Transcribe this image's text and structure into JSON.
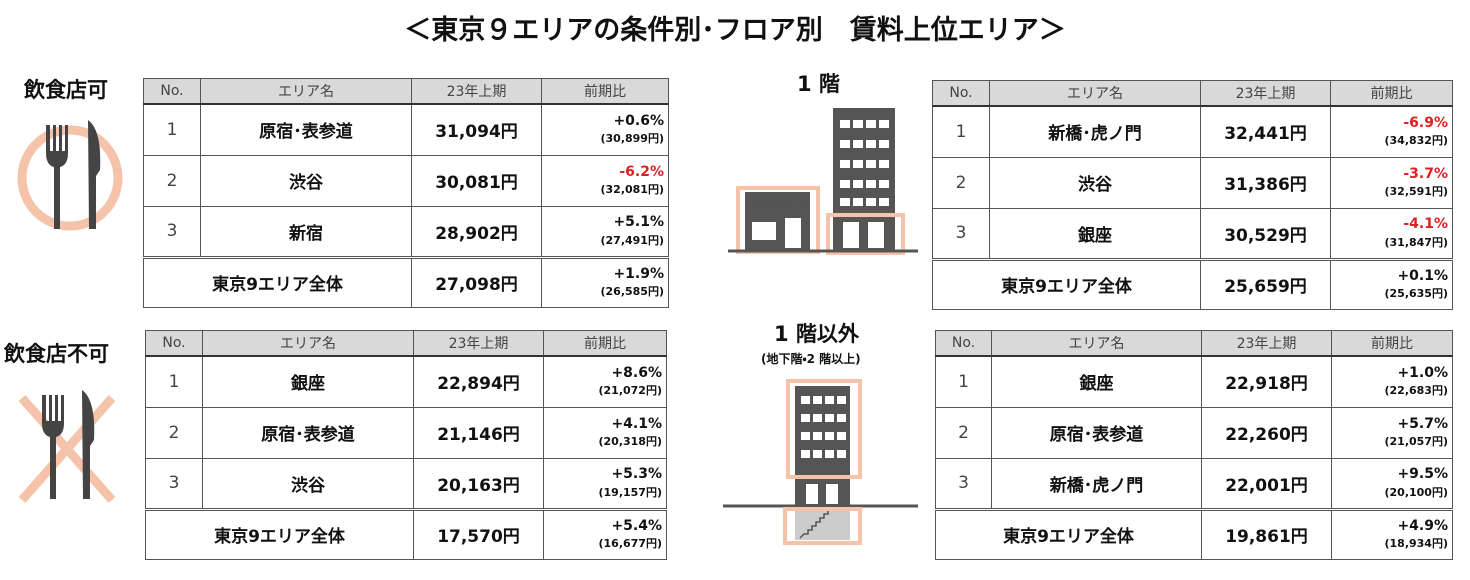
{
  "title": "＜東京９エリアの条件別･フロア別　賃料上位エリア＞",
  "sections": [
    {
      "label": "飲食店可",
      "table": {
        "header": [
          "No.",
          "エリア名",
          "23年上期",
          "前期比"
        ],
        "rows": [
          {
            "no": "1",
            "area": "原宿･表参道",
            "rent": "31,094円",
            "change": "+0.6%",
            "previous": "(30,899円)"
          },
          {
            "no": "2",
            "area": "渋谷",
            "rent": "30,081円",
            "change": "-6.2%",
            "previous": "(32,081円)"
          },
          {
            "no": "3",
            "area": "新宿",
            "rent": "28,902円",
            "change": "+5.1%",
            "previous": "(27,491円)"
          }
        ],
        "total": {
          "area": "東京9エリア全体",
          "rent": "27,098円",
          "change": "+1.9%",
          "previous": "(26,585円)"
        }
      }
    },
    {
      "label": "飲食店不可",
      "table": {
        "header": [
          "No.",
          "エリア名",
          "23年上期",
          "前期比"
        ],
        "rows": [
          {
            "no": "1",
            "area": "銀座",
            "rent": "22,894円",
            "change": "+8.6%",
            "previous": "(21,072円)"
          },
          {
            "no": "2",
            "area": "原宿･表参道",
            "rent": "21,146円",
            "change": "+4.1%",
            "previous": "(20,318円)"
          },
          {
            "no": "3",
            "area": "渋谷",
            "rent": "20,163円",
            "change": "+5.3%",
            "previous": "(19,157円)"
          }
        ],
        "total": {
          "area": "東京9エリア全体",
          "rent": "17,570円",
          "change": "+5.4%",
          "previous": "(16,677円)"
        }
      }
    },
    {
      "label": "1 階",
      "table": {
        "header": [
          "No.",
          "エリア名",
          "23年上期",
          "前期比"
        ],
        "rows": [
          {
            "no": "1",
            "area": "新橋･虎ノ門",
            "rent": "32,441円",
            "change": "-6.9%",
            "previous": "(34,832円)"
          },
          {
            "no": "2",
            "area": "渋谷",
            "rent": "31,386円",
            "change": "-3.7%",
            "previous": "(32,591円)"
          },
          {
            "no": "3",
            "area": "銀座",
            "rent": "30,529円",
            "change": "-4.1%",
            "previous": "(31,847円)"
          }
        ],
        "total": {
          "area": "東京9エリア全体",
          "rent": "25,659円",
          "change": "+0.1%",
          "previous": "(25,635円)"
        }
      }
    },
    {
      "label": "1 階以外",
      "sublabel": "(地下階・2 階以上)",
      "table": {
        "header": [
          "No.",
          "エリア名",
          "23年上期",
          "前期比"
        ],
        "rows": [
          {
            "no": "1",
            "area": "銀座",
            "rent": "22,918円",
            "change": "+1.0%",
            "previous": "(22,683円)"
          },
          {
            "no": "2",
            "area": "原宿･表参道",
            "rent": "22,260円",
            "change": "+5.7%",
            "previous": "(21,057円)"
          },
          {
            "no": "3",
            "area": "新橋･虎ノ門",
            "rent": "22,001円",
            "change": "+9.5%",
            "previous": "(20,100円)"
          }
        ],
        "total": {
          "area": "東京9エリア全体",
          "rent": "19,861円",
          "change": "+4.9%",
          "previous": "(18,934円)"
        }
      }
    }
  ]
}
